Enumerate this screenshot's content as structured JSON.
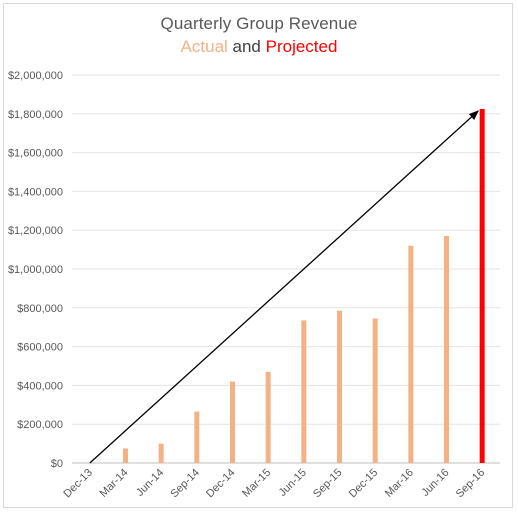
{
  "chart_data": {
    "type": "bar",
    "title": "Quarterly Group Revenue",
    "subtitle": {
      "actual_label": "Actual",
      "joiner": " and ",
      "projected_label": "Projected"
    },
    "categories": [
      "Dec-13",
      "Mar-14",
      "Jun-14",
      "Sep-14",
      "Dec-14",
      "Mar-15",
      "Jun-15",
      "Sep-15",
      "Dec-15",
      "Mar-16",
      "Jun-16",
      "Sep-16"
    ],
    "series": [
      {
        "name": "Actual",
        "color": "#f4b183",
        "values": [
          0,
          75000,
          100000,
          265000,
          420000,
          470000,
          735000,
          785000,
          745000,
          1120000,
          1170000,
          null
        ]
      },
      {
        "name": "Projected",
        "color": "#ff0000",
        "values": [
          null,
          null,
          null,
          null,
          null,
          null,
          null,
          null,
          null,
          null,
          null,
          1825000
        ]
      }
    ],
    "ylim": [
      0,
      2000000
    ],
    "yticks": [
      0,
      200000,
      400000,
      600000,
      800000,
      1000000,
      1200000,
      1400000,
      1600000,
      1800000,
      2000000
    ],
    "ytick_labels": [
      "$0",
      "$200,000",
      "$400,000",
      "$600,000",
      "$800,000",
      "$1,000,000",
      "$1,200,000",
      "$1,400,000",
      "$1,600,000",
      "$1,800,000",
      "$2,000,000"
    ],
    "grid": true,
    "annotation": {
      "type": "trend-arrow",
      "from": {
        "category": "Dec-13",
        "value": 0
      },
      "to": {
        "category": "Sep-16",
        "value": 1825000
      },
      "color": "#000000"
    }
  }
}
